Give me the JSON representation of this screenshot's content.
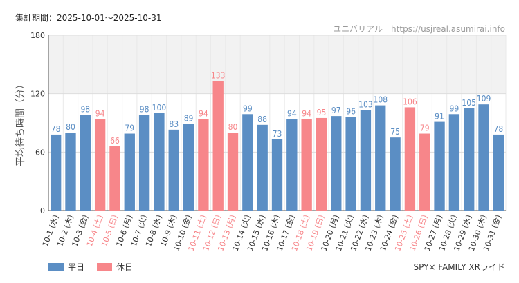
{
  "header": {
    "period_label": "集計期間：2025-10-01～2025-10-31",
    "watermark": "ユニバリアル　https://usjreal.asumirai.info"
  },
  "footer": {
    "attraction": "SPY× FAMILY XRライド"
  },
  "legend": {
    "weekday": "平日",
    "holiday": "休日"
  },
  "colors": {
    "weekday": "#5b8ec4",
    "holiday": "#f7868a",
    "grid": "#dddddd",
    "band": "#f2f2f2"
  },
  "chart_data": {
    "type": "bar",
    "ylabel": "平均待ち時間（分）",
    "ylim": [
      0,
      180
    ],
    "yticks": [
      "0",
      "60",
      "120",
      "180"
    ],
    "band_range": [
      120,
      180
    ],
    "categories": [
      "10-1 (水)",
      "10-2 (木)",
      "10-3 (金)",
      "10-4 (土)",
      "10-5 (日)",
      "10-6 (月)",
      "10-7 (火)",
      "10-8 (水)",
      "10-9 (木)",
      "10-10 (金)",
      "10-11 (土)",
      "10-12 (日)",
      "10-13 (月)",
      "10-14 (火)",
      "10-15 (水)",
      "10-16 (木)",
      "10-17 (金)",
      "10-18 (土)",
      "10-19 (日)",
      "10-20 (月)",
      "10-21 (火)",
      "10-22 (水)",
      "10-23 (木)",
      "10-24 (金)",
      "10-25 (土)",
      "10-26 (日)",
      "10-27 (月)",
      "10-28 (火)",
      "10-29 (水)",
      "10-30 (木)",
      "10-31 (金)"
    ],
    "values": [
      78,
      80,
      98,
      94,
      66,
      79,
      98,
      100,
      83,
      89,
      94,
      133,
      80,
      99,
      88,
      73,
      94,
      94,
      95,
      97,
      96,
      103,
      108,
      75,
      106,
      79,
      91,
      99,
      105,
      109,
      78
    ],
    "day_type": [
      "weekday",
      "weekday",
      "weekday",
      "holiday",
      "holiday",
      "weekday",
      "weekday",
      "weekday",
      "weekday",
      "weekday",
      "holiday",
      "holiday",
      "holiday",
      "weekday",
      "weekday",
      "weekday",
      "weekday",
      "holiday",
      "holiday",
      "weekday",
      "weekday",
      "weekday",
      "weekday",
      "weekday",
      "holiday",
      "holiday",
      "weekday",
      "weekday",
      "weekday",
      "weekday",
      "weekday"
    ]
  }
}
